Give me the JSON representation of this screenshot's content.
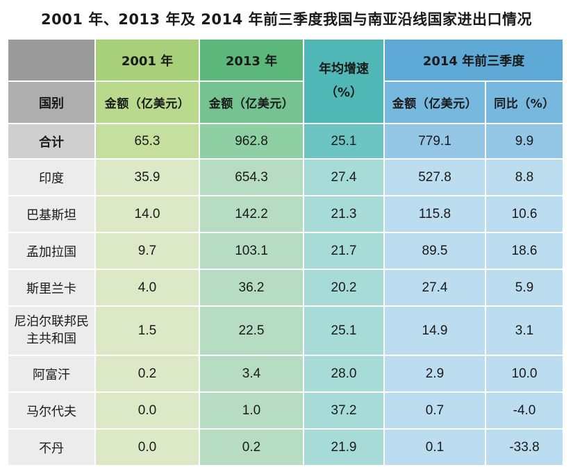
{
  "title": "2001 年、2013 年及 2014 年前三季度我国与南亚沿线国家进出口情况",
  "headers": {
    "year_2001": "2001 年",
    "year_2013": "2013 年",
    "growth": "年均增速",
    "growth_unit": "（%）",
    "q3_2014": "2014 年前三季度",
    "country": "国别",
    "amount": "金额（亿美元）",
    "yoy": "同比（%）"
  },
  "total": {
    "name": "合计",
    "v2001": "65.3",
    "v2013": "962.8",
    "growth": "25.1",
    "v2014": "779.1",
    "yoy": "9.9"
  },
  "rows": [
    {
      "name": "印度",
      "v2001": "35.9",
      "v2013": "654.3",
      "growth": "27.4",
      "v2014": "527.8",
      "yoy": "8.8"
    },
    {
      "name": "巴基斯坦",
      "v2001": "14.0",
      "v2013": "142.2",
      "growth": "21.3",
      "v2014": "115.8",
      "yoy": "10.6"
    },
    {
      "name": "孟加拉国",
      "v2001": "9.7",
      "v2013": "103.1",
      "growth": "21.7",
      "v2014": "89.5",
      "yoy": "18.6"
    },
    {
      "name": "斯里兰卡",
      "v2001": "4.0",
      "v2013": "36.2",
      "growth": "20.2",
      "v2014": "27.4",
      "yoy": "5.9"
    },
    {
      "name": "尼泊尔联邦民主共和国",
      "v2001": "1.5",
      "v2013": "22.5",
      "growth": "25.1",
      "v2014": "14.9",
      "yoy": "3.1"
    },
    {
      "name": "阿富汗",
      "v2001": "0.2",
      "v2013": "3.4",
      "growth": "28.0",
      "v2014": "2.9",
      "yoy": "10.0"
    },
    {
      "name": "马尔代夫",
      "v2001": "0.0",
      "v2013": "1.0",
      "growth": "37.2",
      "v2014": "0.7",
      "yoy": "-4.0"
    },
    {
      "name": "不丹",
      "v2001": "0.0",
      "v2013": "0.2",
      "growth": "21.9",
      "v2014": "0.1",
      "yoy": "-33.8"
    }
  ]
}
